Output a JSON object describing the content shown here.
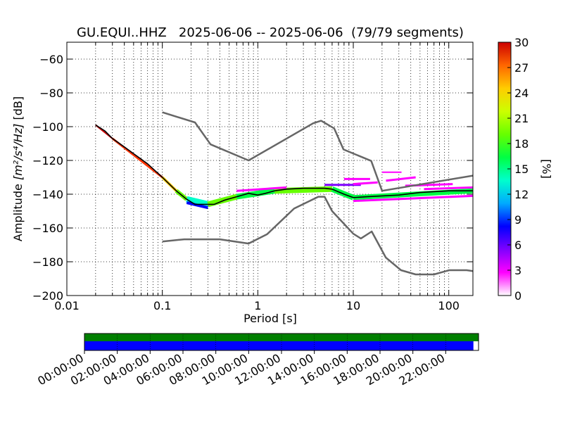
{
  "chart_data": {
    "type": "heatmap",
    "title": "GU.EQUI..HHZ   2025-06-06 -- 2025-06-06  (79/79 segments)",
    "xlabel": "Period [s]",
    "ylabel_prefix": "Amplitude ",
    "ylabel_units": "[m²/s⁴/Hz]",
    "ylabel_suffix": " [dB]",
    "x_scale": "log",
    "xlim": [
      0.01,
      179
    ],
    "ylim": [
      -200,
      -50
    ],
    "x_ticks": [
      {
        "value": 0.01,
        "label": "0.01"
      },
      {
        "value": 0.1,
        "label": "0.1"
      },
      {
        "value": 1,
        "label": "1"
      },
      {
        "value": 10,
        "label": "10"
      },
      {
        "value": 100,
        "label": "100"
      }
    ],
    "y_ticks": [
      {
        "value": -60,
        "label": "−60"
      },
      {
        "value": -80,
        "label": "−80"
      },
      {
        "value": -100,
        "label": "−100"
      },
      {
        "value": -120,
        "label": "−120"
      },
      {
        "value": -140,
        "label": "−140"
      },
      {
        "value": -160,
        "label": "−160"
      },
      {
        "value": -180,
        "label": "−180"
      },
      {
        "value": -200,
        "label": "−200"
      }
    ],
    "grid": true,
    "colorbar": {
      "label": "[%]",
      "range": [
        0,
        30
      ],
      "ticks": [
        {
          "value": 0,
          "label": "0"
        },
        {
          "value": 3,
          "label": "3"
        },
        {
          "value": 6,
          "label": "6"
        },
        {
          "value": 9,
          "label": "9"
        },
        {
          "value": 12,
          "label": "12"
        },
        {
          "value": 15,
          "label": "15"
        },
        {
          "value": 18,
          "label": "18"
        },
        {
          "value": 21,
          "label": "21"
        },
        {
          "value": 24,
          "label": "24"
        },
        {
          "value": 27,
          "label": "27"
        },
        {
          "value": 30,
          "label": "30"
        }
      ],
      "stops": [
        "#ffffff",
        "#ff00ff",
        "#7f00ff",
        "#0000ff",
        "#00aaff",
        "#00ffcc",
        "#00ff44",
        "#66ff00",
        "#ccff00",
        "#ffcc00",
        "#ff6600",
        "#cc0000"
      ]
    },
    "series": [
      {
        "kind": "model",
        "color": "#666666",
        "x": [
          0.1,
          0.17,
          0.4,
          0.8,
          1.25,
          2.4,
          4.3,
          5.0,
          6.0,
          10.0,
          12.0,
          15.6,
          21.9,
          31.6,
          45.0,
          70.0,
          101.0,
          154.0,
          179.0
        ],
        "y": [
          -168,
          -166.7,
          -166.7,
          -169.2,
          -163.7,
          -148.5,
          -141.5,
          -141.5,
          -150,
          -163.4,
          -166.2,
          -162.1,
          -177.5,
          -185,
          -187.5,
          -187.5,
          -185,
          -185,
          -185.5
        ]
      },
      {
        "kind": "model",
        "color": "#666666",
        "x": [
          0.1,
          0.22,
          0.32,
          0.8,
          3.8,
          4.6,
          6.3,
          7.9,
          15.4,
          20.0,
          179.0
        ],
        "y": [
          -91.5,
          -97.5,
          -110.5,
          -120,
          -98,
          -96.5,
          -101,
          -113.5,
          -120.3,
          -138,
          -129
        ]
      },
      {
        "kind": "mode",
        "color": "#000000",
        "x": [
          0.02,
          0.025,
          0.03,
          0.04,
          0.05,
          0.07,
          0.1,
          0.14,
          0.18,
          0.22,
          0.28,
          0.35,
          0.45,
          0.6,
          0.8,
          1.0,
          1.2,
          1.5,
          2.0,
          3.0,
          4.0,
          5.0,
          6.0,
          8.0,
          10.0,
          14.0,
          20.0,
          30.0,
          50.0,
          100.0,
          179.0
        ],
        "y": [
          -99,
          -102.5,
          -107,
          -112,
          -116,
          -122,
          -130,
          -138,
          -143,
          -146,
          -146,
          -146,
          -143.5,
          -141.5,
          -139.5,
          -140.5,
          -139.5,
          -138,
          -137,
          -136.5,
          -136.5,
          -136.5,
          -137,
          -140,
          -142,
          -141.5,
          -141,
          -140.5,
          -139,
          -138,
          -138
        ]
      }
    ],
    "heat_segments": [
      {
        "x0": 0.02,
        "x1": 0.03,
        "y0": -99,
        "y1": -107,
        "w": 2.2,
        "color": "#cc0000"
      },
      {
        "x0": 0.03,
        "x1": 0.1,
        "y0": -107,
        "y1": -130,
        "w": 3.0,
        "color": "#ff3300"
      },
      {
        "x0": 0.1,
        "x1": 0.14,
        "y0": -130,
        "y1": -138,
        "w": 4.0,
        "color": "#ffcc00"
      },
      {
        "x0": 0.14,
        "x1": 0.18,
        "y0": -138,
        "y1": -143,
        "w": 6.0,
        "color": "#66ff00"
      },
      {
        "x0": 0.18,
        "x1": 0.3,
        "y0": -143,
        "y1": -146,
        "w": 9.0,
        "color": "#00ffcc"
      },
      {
        "x0": 0.3,
        "x1": 0.6,
        "y0": -146,
        "y1": -141.5,
        "w": 8.0,
        "color": "#66ff00"
      },
      {
        "x0": 0.6,
        "x1": 1.5,
        "y0": -141.5,
        "y1": -138,
        "w": 8.0,
        "color": "#00ff44"
      },
      {
        "x0": 1.5,
        "x1": 6.0,
        "y0": -138,
        "y1": -137,
        "w": 8.0,
        "color": "#66ff00"
      },
      {
        "x0": 6.0,
        "x1": 10.0,
        "y0": -137,
        "y1": -142,
        "w": 8.0,
        "color": "#00ff44"
      },
      {
        "x0": 10.0,
        "x1": 179.0,
        "y0": -142,
        "y1": -138,
        "w": 7.0,
        "color": "#00ff44"
      },
      {
        "x0": 0.18,
        "x1": 0.3,
        "y0": -145,
        "y1": -148,
        "w": 4.0,
        "color": "#0000ff"
      },
      {
        "x0": 0.6,
        "x1": 2.0,
        "y0": -138,
        "y1": -136,
        "w": 3.0,
        "color": "#ff00ff"
      },
      {
        "x0": 5.0,
        "x1": 12.0,
        "y0": -134.5,
        "y1": -134.5,
        "w": 3.0,
        "color": "#7f00ff"
      },
      {
        "x0": 10.0,
        "x1": 179.0,
        "y0": -144,
        "y1": -141,
        "w": 3.0,
        "color": "#ff00ff"
      }
    ],
    "outliers": [
      {
        "x0": 8.0,
        "x1": 15.0,
        "y0": -131,
        "y1": -131,
        "w": 3,
        "color": "#ff00ff"
      },
      {
        "x0": 10.0,
        "x1": 18.0,
        "y0": -134,
        "y1": -133,
        "w": 3,
        "color": "#ff00ff"
      },
      {
        "x0": 20.0,
        "x1": 32.0,
        "y0": -127,
        "y1": -127,
        "w": 2,
        "color": "#ff00ff"
      },
      {
        "x0": 22.0,
        "x1": 45.0,
        "y0": -132,
        "y1": -130,
        "w": 3,
        "color": "#ff00ff"
      },
      {
        "x0": 35.0,
        "x1": 110.0,
        "y0": -135,
        "y1": -134,
        "w": 3,
        "color": "#ff00ff"
      },
      {
        "x0": 55.0,
        "x1": 179.0,
        "y0": -137,
        "y1": -136,
        "w": 3,
        "color": "#ff00ff"
      }
    ]
  },
  "timeline": {
    "ticks": [
      "00:00:00",
      "02:00:00",
      "04:00:00",
      "06:00:00",
      "08:00:00",
      "10:00:00",
      "12:00:00",
      "14:00:00",
      "16:00:00",
      "18:00:00",
      "20:00:00",
      "22:00:00"
    ],
    "available_color": "#007f00",
    "used_color": "#0000ff",
    "available_fraction": 1.0,
    "used_fraction": 0.987
  }
}
